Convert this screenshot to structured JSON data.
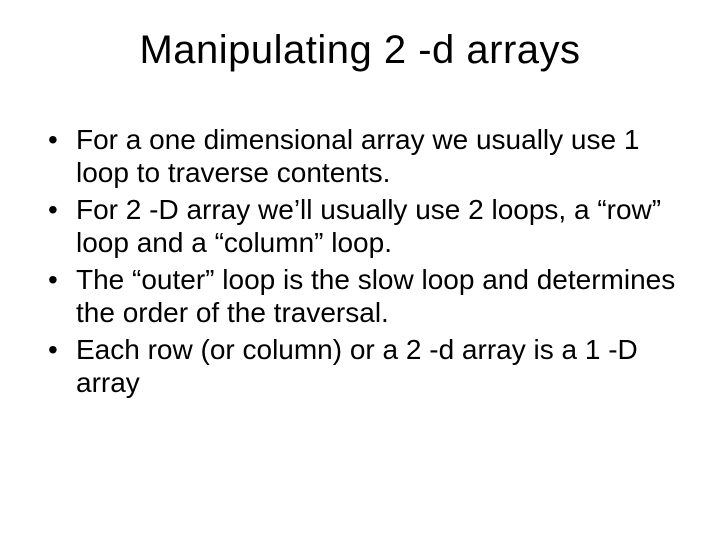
{
  "title": "Manipulating 2 -d arrays",
  "title_fontsize": 40,
  "body_fontsize": 28,
  "background_color": "#ffffff",
  "text_color": "#000000",
  "bullets": [
    "For a one dimensional array we usually use 1 loop to traverse contents.",
    "For 2 -D array we’ll usually use 2 loops, a “row” loop and a “column” loop.",
    "The “outer” loop is the slow loop and determines the order of the traversal.",
    "Each row (or column) or a 2 -d array is a 1 -D array"
  ]
}
